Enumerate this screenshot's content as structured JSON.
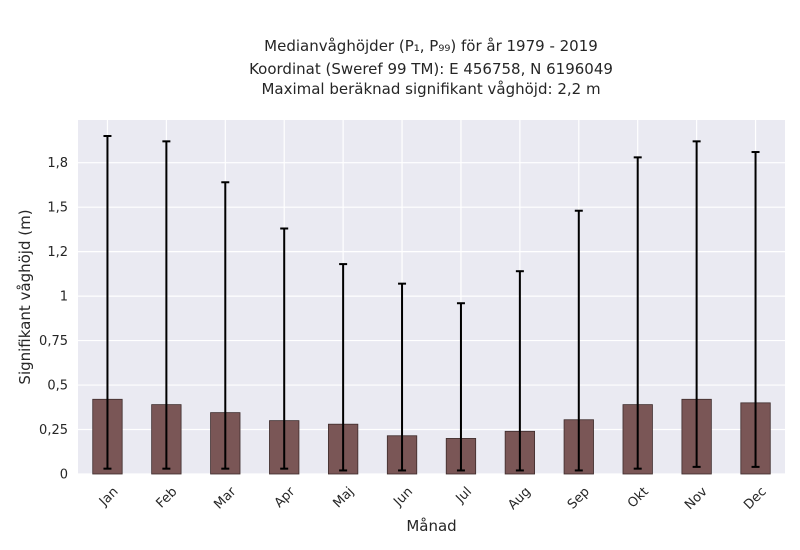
{
  "chart_data": {
    "type": "bar",
    "title_lines": [
      "Medianvåghöjder (P₁, P₉₉) för år 1979 - 2019",
      "Koordinat (Sweref 99 TM): E 456758, N 6196049",
      "Maximal beräknad signifikant våghöjd: 2,2 m"
    ],
    "xlabel": "Månad",
    "ylabel": "Signifikant våghöjd (m)",
    "categories": [
      "Jan",
      "Feb",
      "Mar",
      "Apr",
      "Maj",
      "Jun",
      "Jul",
      "Aug",
      "Sep",
      "Okt",
      "Nov",
      "Dec"
    ],
    "values": [
      0.42,
      0.39,
      0.345,
      0.3,
      0.28,
      0.215,
      0.2,
      0.24,
      0.305,
      0.39,
      0.42,
      0.4
    ],
    "p1": [
      0.03,
      0.03,
      0.03,
      0.03,
      0.02,
      0.02,
      0.02,
      0.02,
      0.02,
      0.03,
      0.04,
      0.04
    ],
    "p99": [
      1.9,
      1.87,
      1.64,
      1.38,
      1.18,
      1.07,
      0.96,
      1.14,
      1.48,
      1.78,
      1.87,
      1.81
    ],
    "ylim": [
      0,
      1.99
    ],
    "yticks": [
      0,
      0.25,
      0.5,
      0.75,
      1,
      1.25,
      1.5,
      1.75
    ],
    "yticklabels": [
      "0",
      "0,25",
      "0,5",
      "0,75",
      "1",
      "1,2",
      "1,5",
      "1,8"
    ],
    "grid": true,
    "colors": {
      "bar": "#7a5656",
      "bar_edge": "#3d2b2b",
      "errorbar": "#000000",
      "plot_bg": "#eaeaf2",
      "grid": "#ffffff"
    }
  }
}
